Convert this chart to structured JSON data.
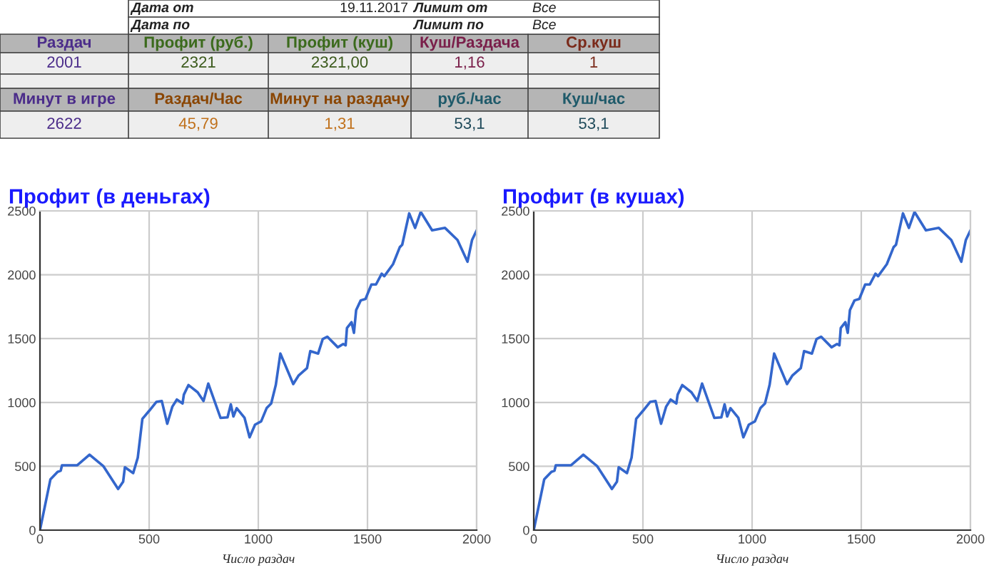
{
  "chart_data": [
    {
      "type": "other",
      "annotations": [
        "Дата от",
        "19.11.2017",
        "Лимит от",
        "Все",
        "Дата по",
        "Лимит по",
        "Все",
        "Раздач",
        "Профит (руб.)",
        "Профит (куш)",
        "Куш/Раздача",
        "Ср.куш",
        "2001",
        "2321",
        "2321,00",
        "1,16",
        "1",
        "Минут в игре",
        "Раздач/Час",
        "Минут на раздачу",
        "руб./час",
        "Куш/час",
        "2622",
        "45,79",
        "1,31",
        "53,1",
        "53,1"
      ]
    },
    {
      "type": "line",
      "title": "Профит (в деньгах)",
      "xlabel": "Число раздач",
      "xlim": [
        0,
        2000
      ],
      "xticks": [
        0,
        500,
        1000,
        1500,
        2000
      ],
      "ylim": [
        0,
        2500
      ],
      "yticks": [
        0,
        500,
        1000,
        1500,
        2000,
        2500
      ],
      "grid": true,
      "legend": false,
      "series": [
        {
          "color": "#3366cc",
          "x": [
            0,
            48,
            80,
            95,
            101,
            171,
            227,
            291,
            358,
            381,
            389,
            427,
            448,
            469,
            501,
            533,
            558,
            583,
            606,
            627,
            653,
            659,
            680,
            722,
            749,
            771,
            827,
            859,
            874,
            886,
            901,
            937,
            960,
            985,
            1013,
            1038,
            1059,
            1080,
            1101,
            1160,
            1185,
            1223,
            1238,
            1274,
            1295,
            1316,
            1364,
            1389,
            1400,
            1406,
            1427,
            1438,
            1448,
            1469,
            1491,
            1518,
            1539,
            1565,
            1577,
            1617,
            1648,
            1659,
            1691,
            1718,
            1744,
            1796,
            1855,
            1912,
            1958,
            1979,
            2000
          ],
          "values": [
            0,
            398,
            455,
            466,
            508,
            508,
            591,
            500,
            322,
            379,
            492,
            447,
            568,
            871,
            936,
            1004,
            1011,
            833,
            966,
            1023,
            992,
            1061,
            1136,
            1080,
            1011,
            1148,
            879,
            883,
            985,
            890,
            955,
            879,
            727,
            826,
            852,
            955,
            992,
            1136,
            1383,
            1144,
            1212,
            1269,
            1402,
            1383,
            1496,
            1515,
            1432,
            1458,
            1447,
            1583,
            1629,
            1545,
            1723,
            1799,
            1811,
            1924,
            1924,
            2008,
            1989,
            2083,
            2216,
            2235,
            2481,
            2367,
            2492,
            2348,
            2367,
            2273,
            2102,
            2273,
            2348
          ]
        }
      ]
    },
    {
      "type": "line",
      "title": "Профит (в кушах)",
      "xlabel": "Число раздач",
      "xlim": [
        0,
        2000
      ],
      "xticks": [
        0,
        500,
        1000,
        1500,
        2000
      ],
      "ylim": [
        0,
        2500
      ],
      "yticks": [
        0,
        500,
        1000,
        1500,
        2000,
        2500
      ],
      "grid": true,
      "legend": false,
      "series": [
        {
          "color": "#3366cc",
          "x": [
            0,
            48,
            80,
            95,
            101,
            171,
            227,
            291,
            358,
            381,
            389,
            427,
            448,
            469,
            501,
            533,
            558,
            583,
            606,
            627,
            653,
            659,
            680,
            722,
            749,
            771,
            827,
            859,
            874,
            886,
            901,
            937,
            960,
            985,
            1013,
            1038,
            1059,
            1080,
            1101,
            1160,
            1185,
            1223,
            1238,
            1274,
            1295,
            1316,
            1364,
            1389,
            1400,
            1406,
            1427,
            1438,
            1448,
            1469,
            1491,
            1518,
            1539,
            1565,
            1577,
            1617,
            1648,
            1659,
            1691,
            1718,
            1744,
            1796,
            1855,
            1912,
            1958,
            1979,
            2000
          ],
          "values": [
            0,
            398,
            455,
            466,
            508,
            508,
            591,
            500,
            322,
            379,
            492,
            447,
            568,
            871,
            936,
            1004,
            1011,
            833,
            966,
            1023,
            992,
            1061,
            1136,
            1080,
            1011,
            1148,
            879,
            883,
            985,
            890,
            955,
            879,
            727,
            826,
            852,
            955,
            992,
            1136,
            1383,
            1144,
            1212,
            1269,
            1402,
            1383,
            1496,
            1515,
            1432,
            1458,
            1447,
            1583,
            1629,
            1545,
            1723,
            1799,
            1811,
            1924,
            1924,
            2008,
            1989,
            2083,
            2216,
            2235,
            2481,
            2367,
            2492,
            2348,
            2367,
            2273,
            2102,
            2273,
            2348
          ]
        }
      ]
    }
  ]
}
